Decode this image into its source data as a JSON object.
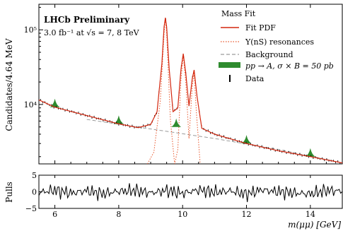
{
  "chart_data": [
    {
      "type": "line",
      "panel": "main",
      "xlabel": "",
      "ylabel": "Candidates/4.64 MeV",
      "xlim": [
        5.5,
        15.0
      ],
      "ylim": [
        1600,
        220000
      ],
      "yscale": "log",
      "grid": false,
      "legend_position": "top-right",
      "legend_title": "Mass Fit",
      "legend": [
        "Fit PDF",
        "Υ(nS) resonances",
        "Background",
        "pp → A,  σ × B = 50 pb",
        "Data"
      ],
      "annotations": [
        "LHCb Preliminary",
        "3.0 fb⁻¹ at √s = 7, 8 TeV"
      ],
      "x_ticks": [
        6,
        8,
        10,
        12,
        14
      ],
      "y_ticks": [
        {
          "value": 10000,
          "label": "10⁴"
        },
        {
          "value": 100000,
          "label": "10⁵"
        }
      ],
      "series": [
        {
          "name": "Fit PDF",
          "style": "solid",
          "color": "#d4260e",
          "x": [
            5.5,
            6.0,
            7.0,
            8.0,
            8.6,
            9.0,
            9.2,
            9.35,
            9.42,
            9.46,
            9.5,
            9.58,
            9.7,
            9.85,
            9.95,
            10.02,
            10.1,
            10.2,
            10.3,
            10.36,
            10.45,
            10.6,
            11.0,
            12.0,
            13.0,
            14.0,
            15.0
          ],
          "y": [
            11500,
            9200,
            7100,
            5500,
            4900,
            5400,
            8000,
            35000,
            110000,
            145000,
            110000,
            30000,
            8000,
            9000,
            30000,
            48000,
            26000,
            9500,
            22000,
            29000,
            13000,
            4800,
            4000,
            3000,
            2400,
            2000,
            1650
          ]
        },
        {
          "name": "Υ(nS) resonances",
          "style": "dotted",
          "color": "#e8552a",
          "x": [
            8.9,
            9.1,
            9.3,
            9.42,
            9.46,
            9.5,
            9.62,
            9.75,
            9.85,
            9.95,
            10.02,
            10.1,
            10.2,
            10.3,
            10.36,
            10.43,
            10.55
          ],
          "y": [
            1600,
            2300,
            11000,
            90000,
            140000,
            90000,
            6000,
            1600,
            2500,
            22000,
            45000,
            20000,
            3500,
            17000,
            27000,
            8000,
            1600
          ]
        },
        {
          "name": "Background",
          "style": "dashed",
          "color": "#9a9a9a",
          "x": [
            7.0,
            9.0,
            11.0,
            13.0,
            15.0
          ],
          "y": [
            6300,
            4700,
            3500,
            2500,
            1650
          ]
        },
        {
          "name": "pp → A,  σ × B = 50 pb",
          "style": "filled peaks",
          "color": "#2e8b2e",
          "x": [
            6.0,
            8.0,
            9.8,
            12.0,
            14.0
          ],
          "y": [
            9200,
            5500,
            5000,
            3000,
            2000
          ]
        }
      ]
    },
    {
      "type": "line",
      "panel": "pulls",
      "xlabel": "m(μμ) [GeV]",
      "ylabel": "Pulls",
      "xlim": [
        5.5,
        15.0
      ],
      "ylim": [
        -5,
        5
      ],
      "grid": false,
      "x_ticks": [
        "6",
        "8",
        "10",
        "12",
        "14"
      ],
      "y_ticks": [
        "5",
        "0",
        "−5"
      ],
      "series": [
        {
          "style": "solid",
          "color": "#000000",
          "x": [
            5.5,
            6.0,
            6.5,
            7.0,
            7.5,
            8.0,
            8.5,
            9.0,
            9.5,
            10.0,
            10.5,
            11.0,
            11.5,
            12.0,
            12.5,
            13.0,
            13.5,
            14.0,
            14.5,
            15.0
          ],
          "y": [
            -0.5,
            1.2,
            -1.0,
            0.8,
            -1.5,
            0.4,
            1.0,
            -0.8,
            0.9,
            -1.1,
            1.4,
            -0.3,
            0.6,
            -1.8,
            1.7,
            0.2,
            -0.9,
            -1.6,
            1.1,
            0.5
          ]
        }
      ]
    }
  ]
}
